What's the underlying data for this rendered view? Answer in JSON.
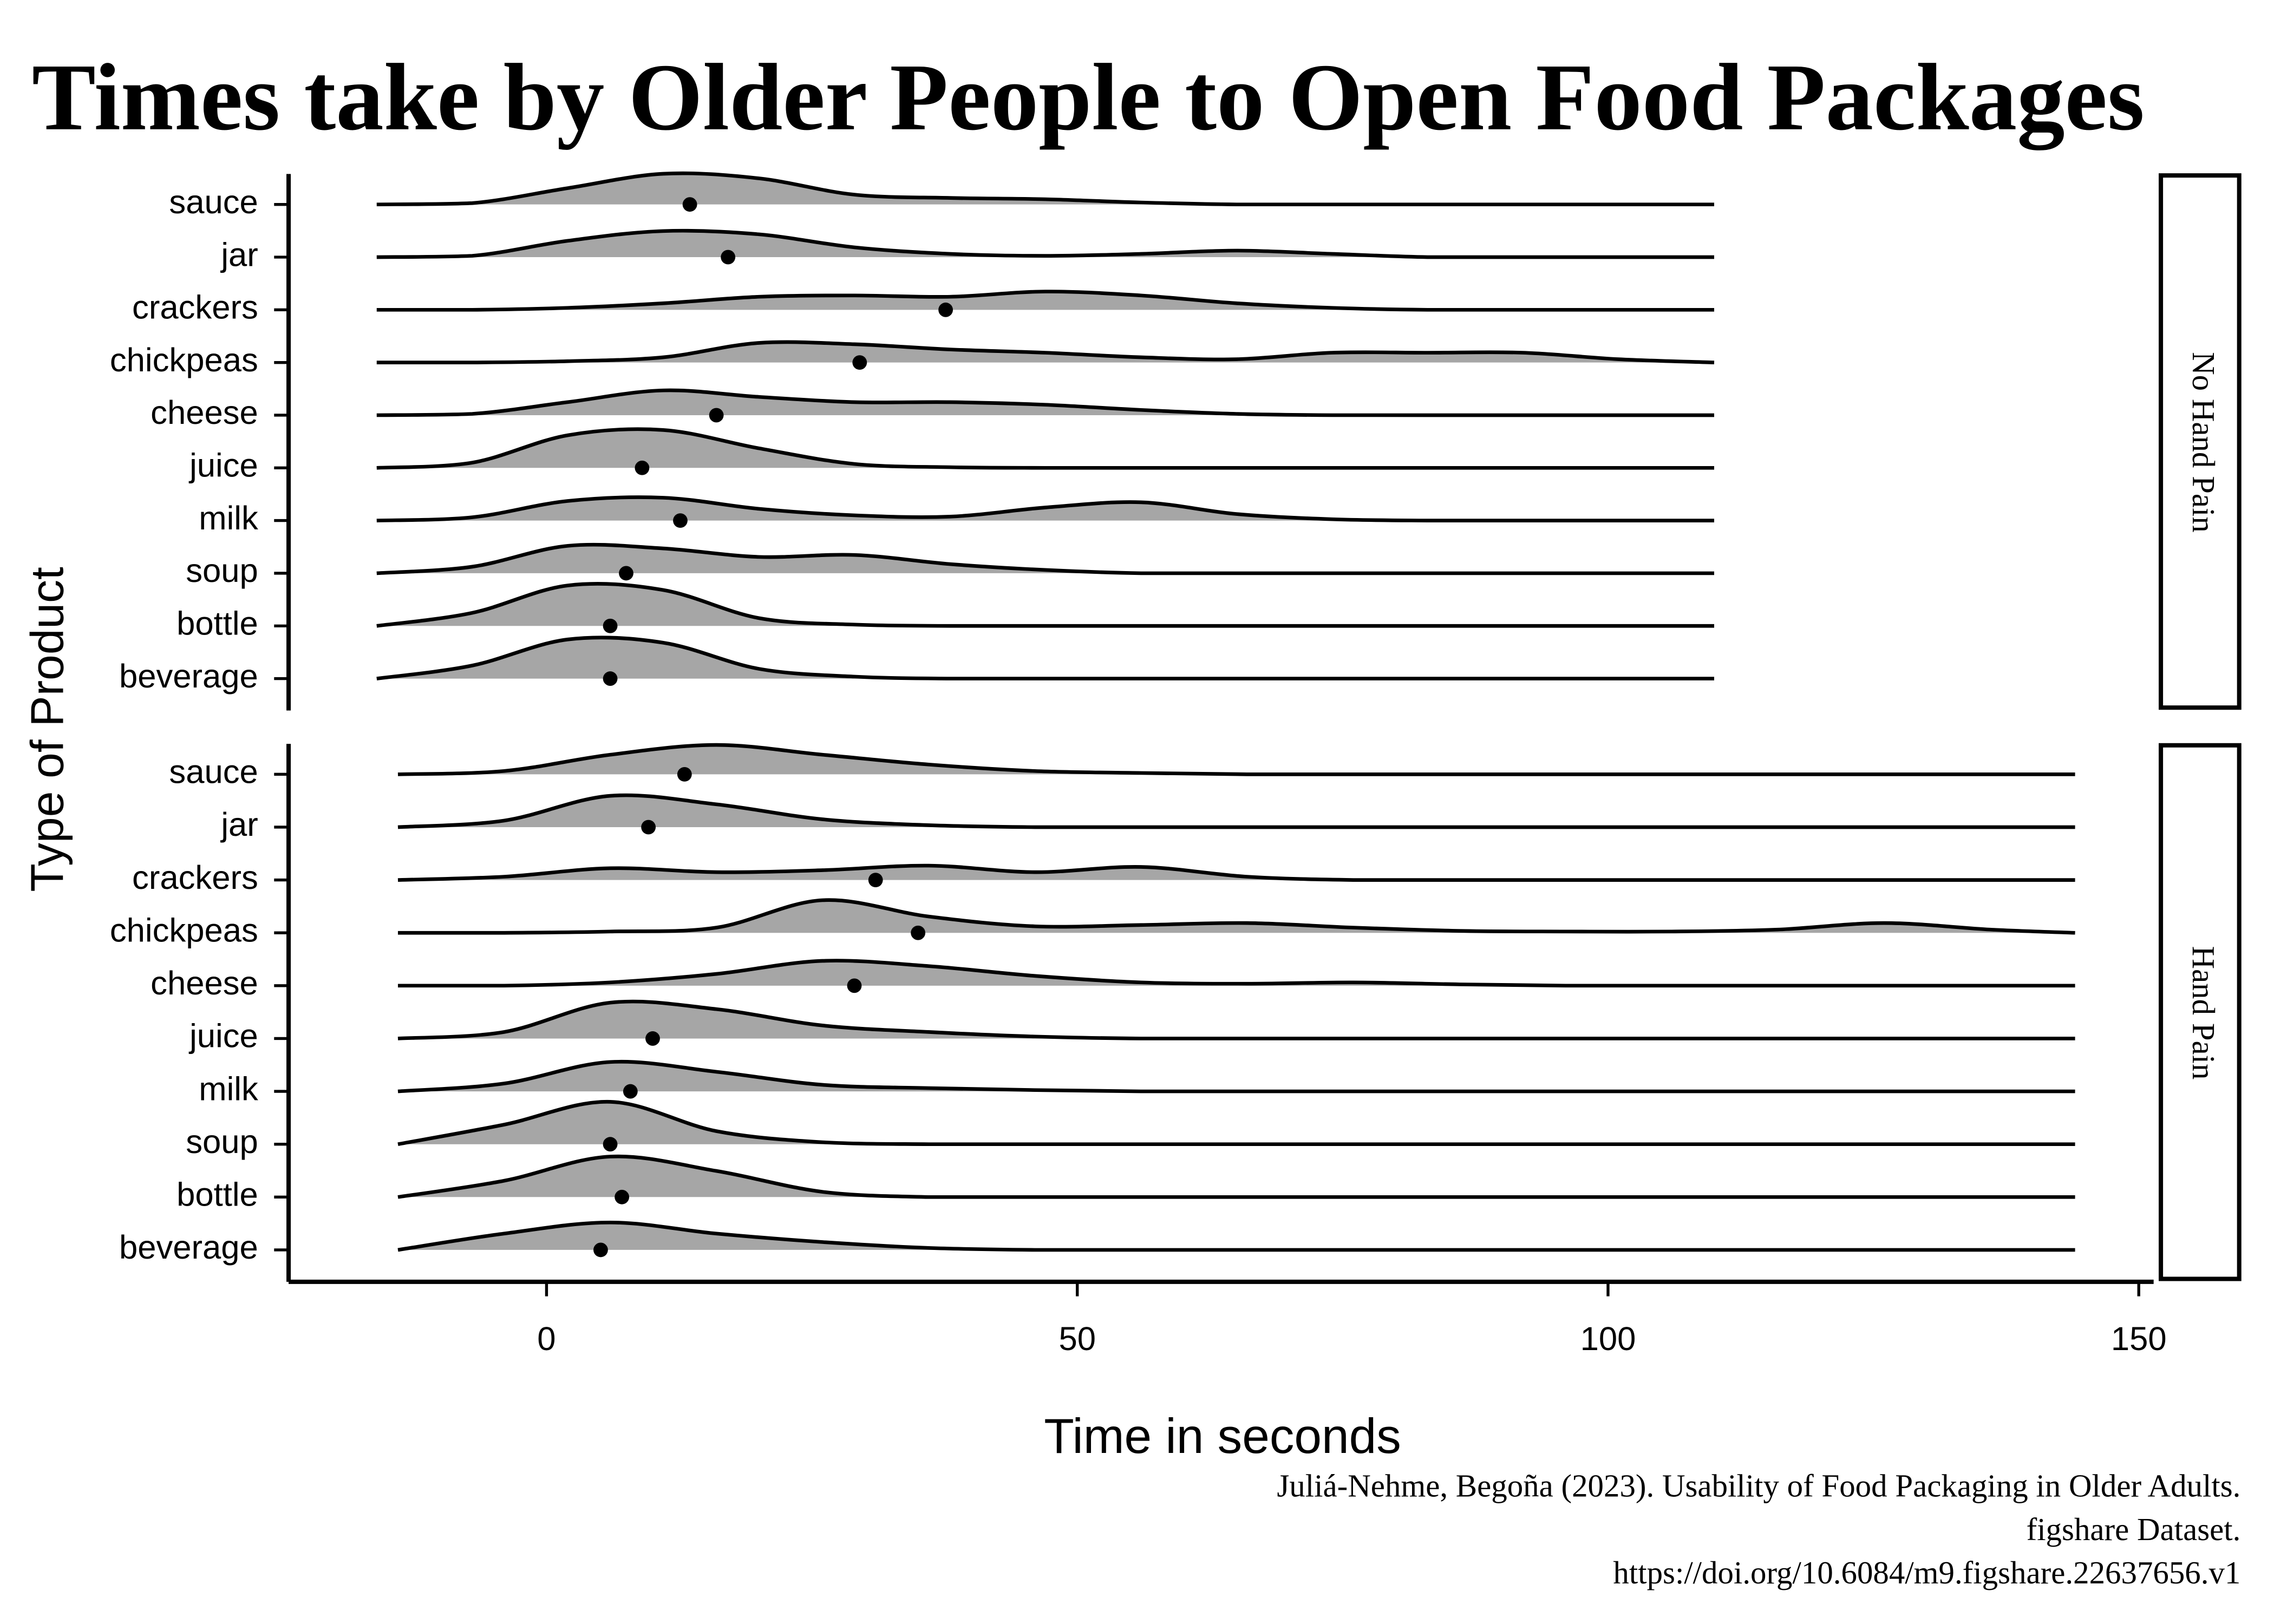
{
  "chart_data": {
    "type": "ridgeline",
    "title": "Times take by Older People to Open Food Packages",
    "x_label": "Time in seconds",
    "y_label": "Type of Product",
    "caption": [
      "Juliá-Nehme, Begoña (2023). Usability of Food Packaging in Older Adults.",
      "figshare Dataset.",
      "https://doi.org/10.6084/m9.figshare.22637656.v1"
    ],
    "xlim": [
      -24.3,
      151.4
    ],
    "xticks": [
      0,
      50,
      100,
      150
    ],
    "fill_color": "#a6a6a6",
    "line_color": "#000000",
    "point_color": "#000000",
    "panels": [
      {
        "name": "No Hand Pain",
        "x": [
          -16,
          -7,
          2,
          11,
          20,
          29,
          38,
          47,
          56,
          65,
          74,
          83,
          92,
          101,
          110
        ],
        "categories": [
          "sauce",
          "jar",
          "crackers",
          "chickpeas",
          "cheese",
          "juice",
          "milk",
          "soup",
          "bottle",
          "beverage"
        ],
        "values": [
          13.5,
          17.1,
          37.6,
          29.5,
          16.0,
          9.0,
          12.6,
          7.5,
          6.0,
          6.0
        ],
        "density": [
          [
            0,
            0.02,
            0.25,
            0.47,
            0.4,
            0.15,
            0.1,
            0.08,
            0.03,
            0,
            0,
            0,
            0,
            0,
            0
          ],
          [
            0,
            0.02,
            0.25,
            0.4,
            0.35,
            0.15,
            0.05,
            0.02,
            0.05,
            0.1,
            0.05,
            0,
            0,
            0,
            0
          ],
          [
            0,
            0,
            0.03,
            0.1,
            0.2,
            0.22,
            0.2,
            0.28,
            0.22,
            0.1,
            0.03,
            0,
            0,
            0,
            0
          ],
          [
            0,
            0,
            0.02,
            0.08,
            0.3,
            0.28,
            0.2,
            0.15,
            0.08,
            0.05,
            0.15,
            0.15,
            0.15,
            0.05,
            0
          ],
          [
            0,
            0.02,
            0.2,
            0.38,
            0.28,
            0.2,
            0.2,
            0.16,
            0.08,
            0.02,
            0,
            0,
            0,
            0,
            0
          ],
          [
            0,
            0.08,
            0.5,
            0.58,
            0.3,
            0.06,
            0.01,
            0,
            0,
            0,
            0,
            0,
            0,
            0,
            0
          ],
          [
            0,
            0.05,
            0.3,
            0.35,
            0.18,
            0.08,
            0.06,
            0.2,
            0.28,
            0.1,
            0.02,
            0,
            0,
            0,
            0
          ],
          [
            0,
            0.1,
            0.42,
            0.38,
            0.25,
            0.28,
            0.14,
            0.05,
            0,
            0,
            0,
            0,
            0,
            0,
            0
          ],
          [
            0,
            0.2,
            0.62,
            0.55,
            0.12,
            0.02,
            0,
            0,
            0,
            0,
            0,
            0,
            0,
            0,
            0
          ],
          [
            0,
            0.2,
            0.6,
            0.55,
            0.15,
            0.03,
            0,
            0,
            0,
            0,
            0,
            0,
            0,
            0,
            0
          ]
        ]
      },
      {
        "name": "Hand Pain",
        "x": [
          -14,
          -4,
          6,
          16,
          26,
          36,
          46,
          56,
          66,
          76,
          86,
          96,
          106,
          116,
          126,
          136,
          144
        ],
        "categories": [
          "sauce",
          "jar",
          "crackers",
          "chickpeas",
          "cheese",
          "juice",
          "milk",
          "soup",
          "bottle",
          "beverage"
        ],
        "values": [
          13.0,
          9.6,
          31.0,
          35.0,
          29.0,
          10.0,
          7.9,
          6.0,
          7.1,
          5.1
        ],
        "density": [
          [
            0,
            0.05,
            0.3,
            0.45,
            0.3,
            0.15,
            0.05,
            0.02,
            0,
            0,
            0,
            0,
            0,
            0,
            0,
            0,
            0
          ],
          [
            0,
            0.1,
            0.48,
            0.35,
            0.12,
            0.03,
            0,
            0,
            0,
            0,
            0,
            0,
            0,
            0,
            0,
            0,
            0
          ],
          [
            0,
            0.05,
            0.18,
            0.12,
            0.15,
            0.22,
            0.12,
            0.2,
            0.05,
            0,
            0,
            0,
            0,
            0,
            0,
            0,
            0
          ],
          [
            0,
            0,
            0.02,
            0.08,
            0.5,
            0.25,
            0.1,
            0.12,
            0.15,
            0.08,
            0.03,
            0.02,
            0.02,
            0.05,
            0.15,
            0.05,
            0
          ],
          [
            0,
            0,
            0.05,
            0.18,
            0.38,
            0.3,
            0.15,
            0.05,
            0.03,
            0.05,
            0.02,
            0,
            0,
            0,
            0,
            0,
            0
          ],
          [
            0,
            0.1,
            0.55,
            0.45,
            0.2,
            0.1,
            0.03,
            0,
            0,
            0,
            0,
            0,
            0,
            0,
            0,
            0,
            0
          ],
          [
            0,
            0.12,
            0.45,
            0.3,
            0.1,
            0.05,
            0.02,
            0,
            0,
            0,
            0,
            0,
            0,
            0,
            0,
            0,
            0
          ],
          [
            0,
            0.3,
            0.65,
            0.2,
            0.03,
            0,
            0,
            0,
            0,
            0,
            0,
            0,
            0,
            0,
            0,
            0,
            0
          ],
          [
            0,
            0.25,
            0.62,
            0.4,
            0.08,
            0,
            0,
            0,
            0,
            0,
            0,
            0,
            0,
            0,
            0,
            0,
            0
          ],
          [
            0,
            0.25,
            0.42,
            0.25,
            0.12,
            0.03,
            0,
            0,
            0,
            0,
            0,
            0,
            0,
            0,
            0,
            0,
            0
          ]
        ]
      }
    ]
  }
}
